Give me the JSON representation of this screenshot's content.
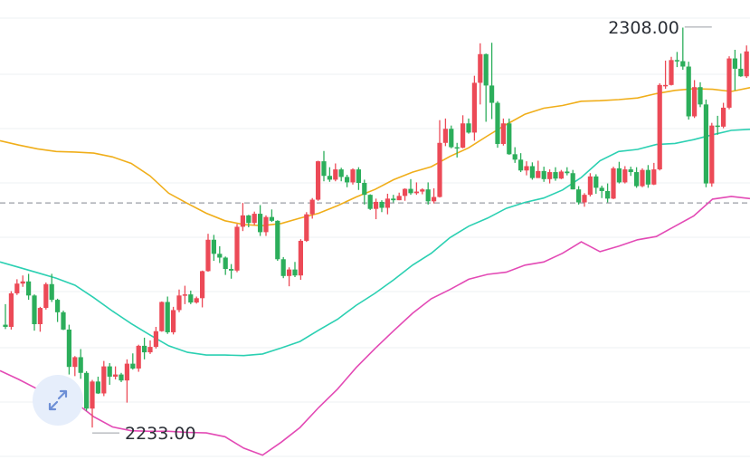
{
  "chart_data": {
    "type": "candlestick",
    "title": "",
    "xlabel": "",
    "ylabel": "",
    "ylim": [
      2228,
      2313
    ],
    "grid": true,
    "reference_line": 2275.5,
    "annotations": [
      {
        "name": "high",
        "text": "2308.00",
        "value": 2308,
        "index": 122
      },
      {
        "name": "low",
        "text": "2233.00",
        "value": 2233,
        "index": 15
      }
    ],
    "candles": [
      [
        2253,
        2252.6,
        2256.8,
        2252.2
      ],
      [
        2252.6,
        2258.8,
        2259.2,
        2252.1
      ],
      [
        2258.8,
        2260.6,
        2261.4,
        2258.5
      ],
      [
        2260.6,
        2261.0,
        2262.1,
        2260.0
      ],
      [
        2261.0,
        2258.4,
        2262.4,
        2257.6
      ],
      [
        2258.4,
        2253.1,
        2258.6,
        2251.9
      ],
      [
        2253.1,
        2256.1,
        2256.3,
        2251.7
      ],
      [
        2256.1,
        2260.5,
        2260.8,
        2255.8
      ],
      [
        2260.5,
        2257.6,
        2262.4,
        2257.2
      ],
      [
        2257.6,
        2255.3,
        2257.8,
        2253.5
      ],
      [
        2255.3,
        2252.1,
        2255.6,
        2252.0
      ],
      [
        2252.1,
        2245.2,
        2253.0,
        2243.8
      ],
      [
        2245.2,
        2247.0,
        2247.2,
        2243.5
      ],
      [
        2247.0,
        2244.1,
        2248.5,
        2243.0
      ],
      [
        2244.1,
        2237.5,
        2244.4,
        2237.1
      ],
      [
        2237.5,
        2242.5,
        2242.8,
        2234.0
      ],
      [
        2242.5,
        2240.3,
        2243.4,
        2240.2
      ],
      [
        2240.3,
        2245.3,
        2246.3,
        2239.8
      ],
      [
        2245.3,
        2243.4,
        2245.9,
        2241.9
      ],
      [
        2243.4,
        2243.8,
        2245.3,
        2242.9
      ],
      [
        2243.8,
        2242.7,
        2244.1,
        2242.4
      ],
      [
        2242.7,
        2245.8,
        2246.6,
        2238.6
      ],
      [
        2245.8,
        2244.9,
        2247.7,
        2244.7
      ],
      [
        2244.9,
        2249.1,
        2249.3,
        2244.3
      ],
      [
        2249.1,
        2247.9,
        2250.6,
        2246.6
      ],
      [
        2247.9,
        2248.9,
        2250.1,
        2247.6
      ],
      [
        2248.9,
        2251.8,
        2252.6,
        2248.6
      ],
      [
        2251.8,
        2257.2,
        2257.3,
        2251.7
      ],
      [
        2257.2,
        2251.6,
        2258.2,
        2251.3
      ],
      [
        2251.6,
        2255.7,
        2256.3,
        2251.2
      ],
      [
        2255.7,
        2258.4,
        2259.5,
        2255.3
      ],
      [
        2258.4,
        2258.6,
        2260.2,
        2256.8
      ],
      [
        2258.6,
        2257.1,
        2259.3,
        2256.8
      ],
      [
        2257.1,
        2257.9,
        2258.2,
        2256.9
      ],
      [
        2257.9,
        2262.9,
        2263.0,
        2256.2
      ],
      [
        2262.9,
        2268.7,
        2269.8,
        2262.8
      ],
      [
        2268.7,
        2266.1,
        2269.6,
        2264.8
      ],
      [
        2266.1,
        2265.4,
        2267.5,
        2264.4
      ],
      [
        2265.4,
        2263.3,
        2265.6,
        2262.2
      ],
      [
        2263.3,
        2263.0,
        2264.2,
        2261.5
      ],
      [
        2263.0,
        2271.1,
        2271.6,
        2262.7
      ],
      [
        2271.1,
        2273.2,
        2275.5,
        2270.3
      ],
      [
        2273.2,
        2271.8,
        2273.3,
        2271.0
      ],
      [
        2271.8,
        2273.5,
        2273.9,
        2271.4
      ],
      [
        2273.5,
        2270.1,
        2275.1,
        2269.4
      ],
      [
        2270.1,
        2272.9,
        2273.2,
        2269.4
      ],
      [
        2272.9,
        2272.2,
        2274.3,
        2272.0
      ],
      [
        2272.2,
        2265.1,
        2272.3,
        2264.8
      ],
      [
        2265.1,
        2262.0,
        2265.5,
        2261.6
      ],
      [
        2262.0,
        2263.2,
        2263.6,
        2260.1
      ],
      [
        2263.2,
        2262.1,
        2264.6,
        2261.8
      ],
      [
        2262.1,
        2268.5,
        2268.8,
        2261.3
      ],
      [
        2268.5,
        2273.4,
        2273.8,
        2268.3
      ],
      [
        2273.4,
        2276.1,
        2276.4,
        2272.6
      ],
      [
        2276.1,
        2283.2,
        2283.3,
        2275.9
      ],
      [
        2283.2,
        2280.5,
        2285.1,
        2279.5
      ],
      [
        2280.5,
        2279.8,
        2282.1,
        2279.4
      ],
      [
        2279.8,
        2281.7,
        2282.8,
        2279.5
      ],
      [
        2281.7,
        2280.3,
        2282.0,
        2279.5
      ],
      [
        2280.3,
        2279.3,
        2280.7,
        2278.4
      ],
      [
        2279.3,
        2281.7,
        2281.9,
        2278.9
      ],
      [
        2281.7,
        2279.2,
        2282.1,
        2277.9
      ],
      [
        2279.2,
        2277.0,
        2279.8,
        2275.2
      ],
      [
        2277.0,
        2274.4,
        2277.1,
        2274.2
      ],
      [
        2274.4,
        2275.7,
        2276.3,
        2272.5
      ],
      [
        2275.7,
        2274.6,
        2276.0,
        2273.8
      ],
      [
        2274.6,
        2276.3,
        2277.2,
        2273.4
      ],
      [
        2276.3,
        2276.0,
        2277.0,
        2275.6
      ],
      [
        2276.0,
        2276.8,
        2277.4,
        2276.0
      ],
      [
        2276.8,
        2278.1,
        2278.2,
        2275.9
      ],
      [
        2278.1,
        2277.3,
        2279.9,
        2277.0
      ],
      [
        2277.3,
        2277.6,
        2279.3,
        2277.0
      ],
      [
        2277.6,
        2278.0,
        2278.2,
        2277.1
      ],
      [
        2278.0,
        2275.8,
        2279.3,
        2275.2
      ],
      [
        2275.8,
        2276.6,
        2278.2,
        2275.4
      ],
      [
        2276.6,
        2286.6,
        2290.8,
        2276.5
      ],
      [
        2286.6,
        2289.2,
        2291.1,
        2286.0
      ],
      [
        2289.2,
        2285.8,
        2289.8,
        2285.6
      ],
      [
        2285.8,
        2285.7,
        2286.6,
        2283.9
      ],
      [
        2285.7,
        2290.2,
        2291.7,
        2285.6
      ],
      [
        2290.2,
        2288.5,
        2291.1,
        2288.3
      ],
      [
        2288.5,
        2297.7,
        2299.0,
        2287.0
      ],
      [
        2297.7,
        2303.0,
        2305.0,
        2293.7
      ],
      [
        2303.0,
        2297.2,
        2303.1,
        2290.5
      ],
      [
        2297.2,
        2294.0,
        2305.1,
        2291.0
      ],
      [
        2294.0,
        2286.4,
        2294.3,
        2285.7
      ],
      [
        2286.4,
        2290.2,
        2291.1,
        2286.1
      ],
      [
        2290.2,
        2284.5,
        2291.1,
        2284.4
      ],
      [
        2284.5,
        2283.5,
        2285.8,
        2282.9
      ],
      [
        2283.5,
        2281.5,
        2284.7,
        2281.2
      ],
      [
        2281.5,
        2282.3,
        2283.2,
        2280.6
      ],
      [
        2282.3,
        2280.1,
        2283.0,
        2279.8
      ],
      [
        2280.1,
        2281.4,
        2283.3,
        2280.1
      ],
      [
        2281.4,
        2279.9,
        2282.2,
        2279.4
      ],
      [
        2279.9,
        2281.2,
        2281.7,
        2279.1
      ],
      [
        2281.2,
        2280.0,
        2282.1,
        2279.6
      ],
      [
        2280.0,
        2281.3,
        2281.6,
        2279.9
      ],
      [
        2281.3,
        2281.0,
        2282.1,
        2280.6
      ],
      [
        2281.0,
        2278.0,
        2281.6,
        2278.0
      ],
      [
        2278.0,
        2275.6,
        2278.6,
        2275.2
      ],
      [
        2275.6,
        2277.0,
        2277.3,
        2274.8
      ],
      [
        2277.0,
        2280.4,
        2281.0,
        2276.7
      ],
      [
        2280.4,
        2278.3,
        2280.8,
        2277.2
      ],
      [
        2278.3,
        2277.7,
        2278.7,
        2276.4
      ],
      [
        2277.7,
        2276.3,
        2279.1,
        2275.6
      ],
      [
        2276.3,
        2281.9,
        2282.2,
        2276.2
      ],
      [
        2281.9,
        2279.3,
        2283.1,
        2279.1
      ],
      [
        2279.3,
        2281.7,
        2282.3,
        2279.1
      ],
      [
        2281.7,
        2281.2,
        2282.2,
        2280.5
      ],
      [
        2281.2,
        2278.6,
        2282.1,
        2278.3
      ],
      [
        2278.6,
        2281.6,
        2281.9,
        2278.4
      ],
      [
        2281.6,
        2278.9,
        2282.5,
        2278.3
      ],
      [
        2278.9,
        2281.7,
        2282.9,
        2278.8
      ],
      [
        2281.7,
        2297.3,
        2297.6,
        2281.5
      ],
      [
        2297.3,
        2297.3,
        2301.8,
        2296.6
      ],
      [
        2297.3,
        2301.9,
        2302.5,
        2297.2
      ],
      [
        2301.9,
        2301.7,
        2303.4,
        2300.6
      ],
      [
        2301.7,
        2300.7,
        2307.9,
        2300.1
      ],
      [
        2300.7,
        2291.5,
        2301.6,
        2290.9
      ],
      [
        2291.5,
        2296.9,
        2298.2,
        2291.2
      ],
      [
        2296.9,
        2293.7,
        2297.8,
        2293.2
      ],
      [
        2293.7,
        2279.1,
        2294.6,
        2278.4
      ],
      [
        2279.1,
        2289.8,
        2290.3,
        2278.5
      ],
      [
        2289.8,
        2289.6,
        2291.6,
        2288.1
      ],
      [
        2289.6,
        2293.1,
        2294.0,
        2289.3
      ],
      [
        2293.1,
        2302.2,
        2302.6,
        2292.8
      ],
      [
        2302.2,
        2300.3,
        2303.8,
        2296.3
      ],
      [
        2300.3,
        2298.9,
        2303.1,
        2298.8
      ],
      [
        2298.9,
        2303.5,
        2304.6,
        2298.6
      ],
      [
        2303.5,
        2303.0,
        2305.3,
        2302.6
      ],
      [
        2303.0,
        2296.9,
        2303.3,
        2293.2
      ]
    ],
    "bands": {
      "upper": [
        2287,
        2286.2,
        2285.5,
        2285.0,
        2284.9,
        2284.7,
        2284.0,
        2282.8,
        2280.5,
        2277.3,
        2275.4,
        2273.6,
        2272.2,
        2271.5,
        2271.3,
        2271.7,
        2272.7,
        2273.6,
        2275.0,
        2276.6,
        2278.0,
        2279.8,
        2281.2,
        2282.2,
        2284.1,
        2285.7,
        2287.9,
        2290.0,
        2291.9,
        2293.0,
        2293.5,
        2294.3,
        2294.4,
        2294.6,
        2294.9,
        2295.7,
        2296.3,
        2296.6,
        2296.5,
        2296.1,
        2296.8
      ],
      "middle": [
        2264.6,
        2263.6,
        2262.6,
        2261.6,
        2260.3,
        2258.0,
        2255.5,
        2253.2,
        2251.1,
        2249.1,
        2247.9,
        2247.4,
        2247.4,
        2247.3,
        2247.6,
        2248.7,
        2249.9,
        2252.0,
        2254.0,
        2256.6,
        2258.8,
        2261.3,
        2264.0,
        2266.2,
        2269.1,
        2271.2,
        2272.7,
        2274.5,
        2275.6,
        2276.4,
        2277.9,
        2280.2,
        2283.3,
        2285.0,
        2285.4,
        2286.3,
        2286.5,
        2287.2,
        2288.1,
        2288.9,
        2289.1
      ],
      "lower": [
        2244.5,
        2242.9,
        2241.1,
        2239.8,
        2238.7,
        2236.0,
        2234.1,
        2233.4,
        2233.3,
        2233.3,
        2233.1,
        2233.0,
        2232.3,
        2230.2,
        2228.9,
        2231.3,
        2234.0,
        2237.7,
        2241.1,
        2245.1,
        2248.6,
        2251.9,
        2255.1,
        2257.8,
        2259.5,
        2261.4,
        2262.3,
        2262.7,
        2264.0,
        2264.6,
        2266.2,
        2268.3,
        2266.5,
        2267.5,
        2268.7,
        2269.3,
        2271.2,
        2273.1,
        2276.2,
        2276.7,
        2276.3
      ]
    },
    "series_colors": {
      "up": "#ec4a57",
      "down": "#2cae5b",
      "upper": "#f0ae1a",
      "middle": "#2bd0b2",
      "lower": "#e34ab5",
      "reference": "#9a9ea5"
    }
  },
  "expand_button": {
    "icon": "expand-diagonal-icon"
  }
}
